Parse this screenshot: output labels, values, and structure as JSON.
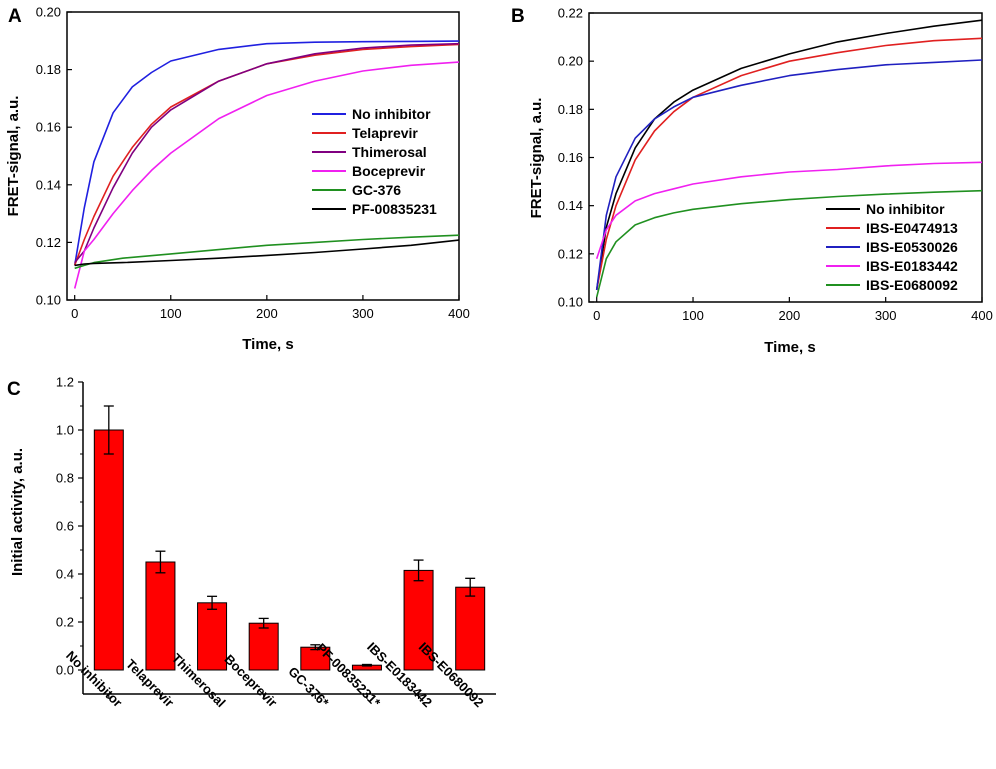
{
  "chart_data": [
    {
      "panel": "A",
      "type": "line",
      "xlabel": "Time, s",
      "ylabel": "FRET-signal, a.u.",
      "xlim": [
        -8,
        400
      ],
      "ylim": [
        0.1,
        0.2
      ],
      "xticks": [
        0,
        100,
        200,
        300,
        400
      ],
      "yticks": [
        0.1,
        0.12,
        0.14,
        0.16,
        0.18,
        0.2
      ],
      "ytick_labels": [
        "0.10",
        "0.12",
        "0.14",
        "0.16",
        "0.18",
        "0.20"
      ],
      "legend_position": "center-right",
      "series": [
        {
          "name": "No inhibitor",
          "color": "#2020e0",
          "x": [
            0,
            10,
            20,
            40,
            60,
            80,
            100,
            150,
            200,
            250,
            300,
            350,
            400
          ],
          "y": [
            0.112,
            0.132,
            0.148,
            0.165,
            0.174,
            0.179,
            0.183,
            0.187,
            0.189,
            0.1895,
            0.1897,
            0.1898,
            0.1899
          ]
        },
        {
          "name": "Telaprevir",
          "color": "#e02020",
          "x": [
            0,
            10,
            20,
            40,
            60,
            80,
            100,
            150,
            200,
            250,
            300,
            350,
            400
          ],
          "y": [
            0.112,
            0.121,
            0.129,
            0.143,
            0.153,
            0.161,
            0.167,
            0.176,
            0.182,
            0.185,
            0.187,
            0.188,
            0.1887
          ]
        },
        {
          "name": "Thimerosal",
          "color": "#800080",
          "x": [
            0,
            10,
            20,
            40,
            60,
            80,
            100,
            150,
            200,
            250,
            300,
            350,
            400
          ],
          "y": [
            0.113,
            0.117,
            0.125,
            0.139,
            0.151,
            0.16,
            0.166,
            0.176,
            0.182,
            0.1855,
            0.1875,
            0.1885,
            0.189
          ]
        },
        {
          "name": "Boceprevir",
          "color": "#f020f0",
          "x": [
            0,
            10,
            20,
            40,
            60,
            80,
            100,
            150,
            200,
            250,
            300,
            350,
            400
          ],
          "y": [
            0.104,
            0.117,
            0.121,
            0.13,
            0.138,
            0.145,
            0.151,
            0.163,
            0.171,
            0.176,
            0.1795,
            0.1815,
            0.1826
          ]
        },
        {
          "name": "GC-376",
          "color": "#209020",
          "x": [
            0,
            10,
            20,
            50,
            100,
            150,
            200,
            250,
            300,
            350,
            400
          ],
          "y": [
            0.111,
            0.112,
            0.113,
            0.1145,
            0.116,
            0.1175,
            0.119,
            0.12,
            0.121,
            0.1218,
            0.1225
          ]
        },
        {
          "name": "PF-00835231",
          "color": "#000000",
          "x": [
            0,
            10,
            20,
            50,
            100,
            150,
            200,
            250,
            300,
            350,
            400
          ],
          "y": [
            0.112,
            0.1125,
            0.1127,
            0.113,
            0.1137,
            0.1145,
            0.1155,
            0.1165,
            0.1177,
            0.119,
            0.1208
          ]
        }
      ]
    },
    {
      "panel": "B",
      "type": "line",
      "xlabel": "Time, s",
      "ylabel": "FRET-signal, a.u.",
      "xlim": [
        -8,
        400
      ],
      "ylim": [
        0.1,
        0.22
      ],
      "xticks": [
        0,
        100,
        200,
        300,
        400
      ],
      "yticks": [
        0.1,
        0.12,
        0.14,
        0.16,
        0.18,
        0.2,
        0.22
      ],
      "ytick_labels": [
        "0.10",
        "0.12",
        "0.14",
        "0.16",
        "0.18",
        "0.20",
        "0.22"
      ],
      "legend_position": "bottom-right",
      "series": [
        {
          "name": "No inhibitor",
          "color": "#000000",
          "x": [
            0,
            10,
            20,
            40,
            60,
            80,
            100,
            150,
            200,
            250,
            300,
            350,
            400
          ],
          "y": [
            0.105,
            0.131,
            0.145,
            0.164,
            0.176,
            0.183,
            0.188,
            0.197,
            0.203,
            0.208,
            0.2115,
            0.2145,
            0.217
          ]
        },
        {
          "name": "IBS-E0474913",
          "color": "#e02020",
          "x": [
            0,
            10,
            20,
            40,
            60,
            80,
            100,
            150,
            200,
            250,
            300,
            350,
            400
          ],
          "y": [
            0.105,
            0.126,
            0.14,
            0.159,
            0.171,
            0.179,
            0.185,
            0.194,
            0.2,
            0.2035,
            0.2065,
            0.2085,
            0.2095
          ]
        },
        {
          "name": "IBS-E0530026",
          "color": "#2020c0",
          "x": [
            0,
            10,
            20,
            40,
            60,
            80,
            100,
            150,
            200,
            250,
            300,
            350,
            400
          ],
          "y": [
            0.105,
            0.136,
            0.152,
            0.168,
            0.176,
            0.181,
            0.185,
            0.19,
            0.194,
            0.1965,
            0.1985,
            0.1995,
            0.2005
          ]
        },
        {
          "name": "IBS-E0183442",
          "color": "#f020f0",
          "x": [
            0,
            10,
            20,
            40,
            60,
            80,
            100,
            150,
            200,
            250,
            300,
            350,
            400
          ],
          "y": [
            0.118,
            0.13,
            0.136,
            0.142,
            0.145,
            0.147,
            0.149,
            0.152,
            0.154,
            0.155,
            0.1565,
            0.1575,
            0.158
          ]
        },
        {
          "name": "IBS-E0680092",
          "color": "#209020",
          "x": [
            0,
            10,
            20,
            40,
            60,
            80,
            100,
            150,
            200,
            250,
            300,
            350,
            400
          ],
          "y": [
            0.102,
            0.118,
            0.125,
            0.132,
            0.135,
            0.137,
            0.1385,
            0.1408,
            0.1425,
            0.1438,
            0.1448,
            0.1456,
            0.1462
          ]
        }
      ]
    },
    {
      "panel": "C",
      "type": "bar",
      "ylabel": "Initial activity, a.u.",
      "ylim": [
        -0.1,
        1.2
      ],
      "yticks": [
        0.0,
        0.2,
        0.4,
        0.6,
        0.8,
        1.0,
        1.2
      ],
      "ytick_labels": [
        "0.0",
        "0.2",
        "0.4",
        "0.6",
        "0.8",
        "1.0",
        "1.2"
      ],
      "bar_color": "#ff0000",
      "categories": [
        "No inhibitor",
        "Telaprevir",
        "Thimerosal",
        "Boceprevir",
        "GC-376*",
        "PF-00835231*",
        "IBS-E0183442",
        "IBS-E0680092"
      ],
      "values": [
        1.0,
        0.45,
        0.28,
        0.195,
        0.095,
        0.02,
        0.415,
        0.345
      ],
      "errors": [
        0.1,
        0.045,
        0.027,
        0.02,
        0.01,
        0.003,
        0.043,
        0.037
      ]
    }
  ]
}
